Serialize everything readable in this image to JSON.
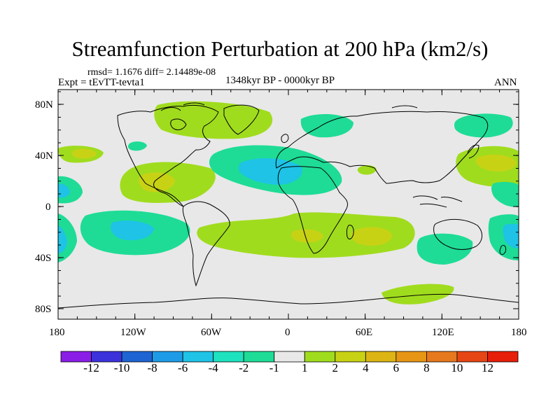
{
  "title": "Streamfunction Perturbation at 200 hPa (km2/s)",
  "stats": "rmsd= 1.1676 diff= 2.14489e-08",
  "experiment": "Expt = tEvTT-tevta1",
  "period": "1348kyr BP - 0000kyr BP",
  "season": "ANN",
  "axes": {
    "y_ticks": [
      "80N",
      "40N",
      "0",
      "40S",
      "80S"
    ],
    "x_ticks": [
      "180",
      "120W",
      "60W",
      "0",
      "60E",
      "120E",
      "180"
    ]
  },
  "colorbar": {
    "colors": [
      "#8a1ee6",
      "#3c32dc",
      "#1e64d2",
      "#1e9be6",
      "#1ec3e6",
      "#1ee1be",
      "#1edc96",
      "#e8e8e8",
      "#a0dc1e",
      "#c8d214",
      "#dcb414",
      "#e69614",
      "#e6781e",
      "#e64614",
      "#e61e0a"
    ],
    "labels": [
      "-12",
      "-10",
      "-8",
      "-6",
      "-4",
      "-2",
      "-1",
      "1",
      "2",
      "4",
      "6",
      "8",
      "10",
      "12"
    ]
  },
  "field_colors": {
    "background": "#e8e8e8",
    "pos_low": "#a0dc1e",
    "pos_mid": "#c8d214",
    "pos_high": "#dcb414",
    "neg_low": "#1edc96",
    "neg_mid": "#1ec3e6",
    "coast": "#000000"
  }
}
